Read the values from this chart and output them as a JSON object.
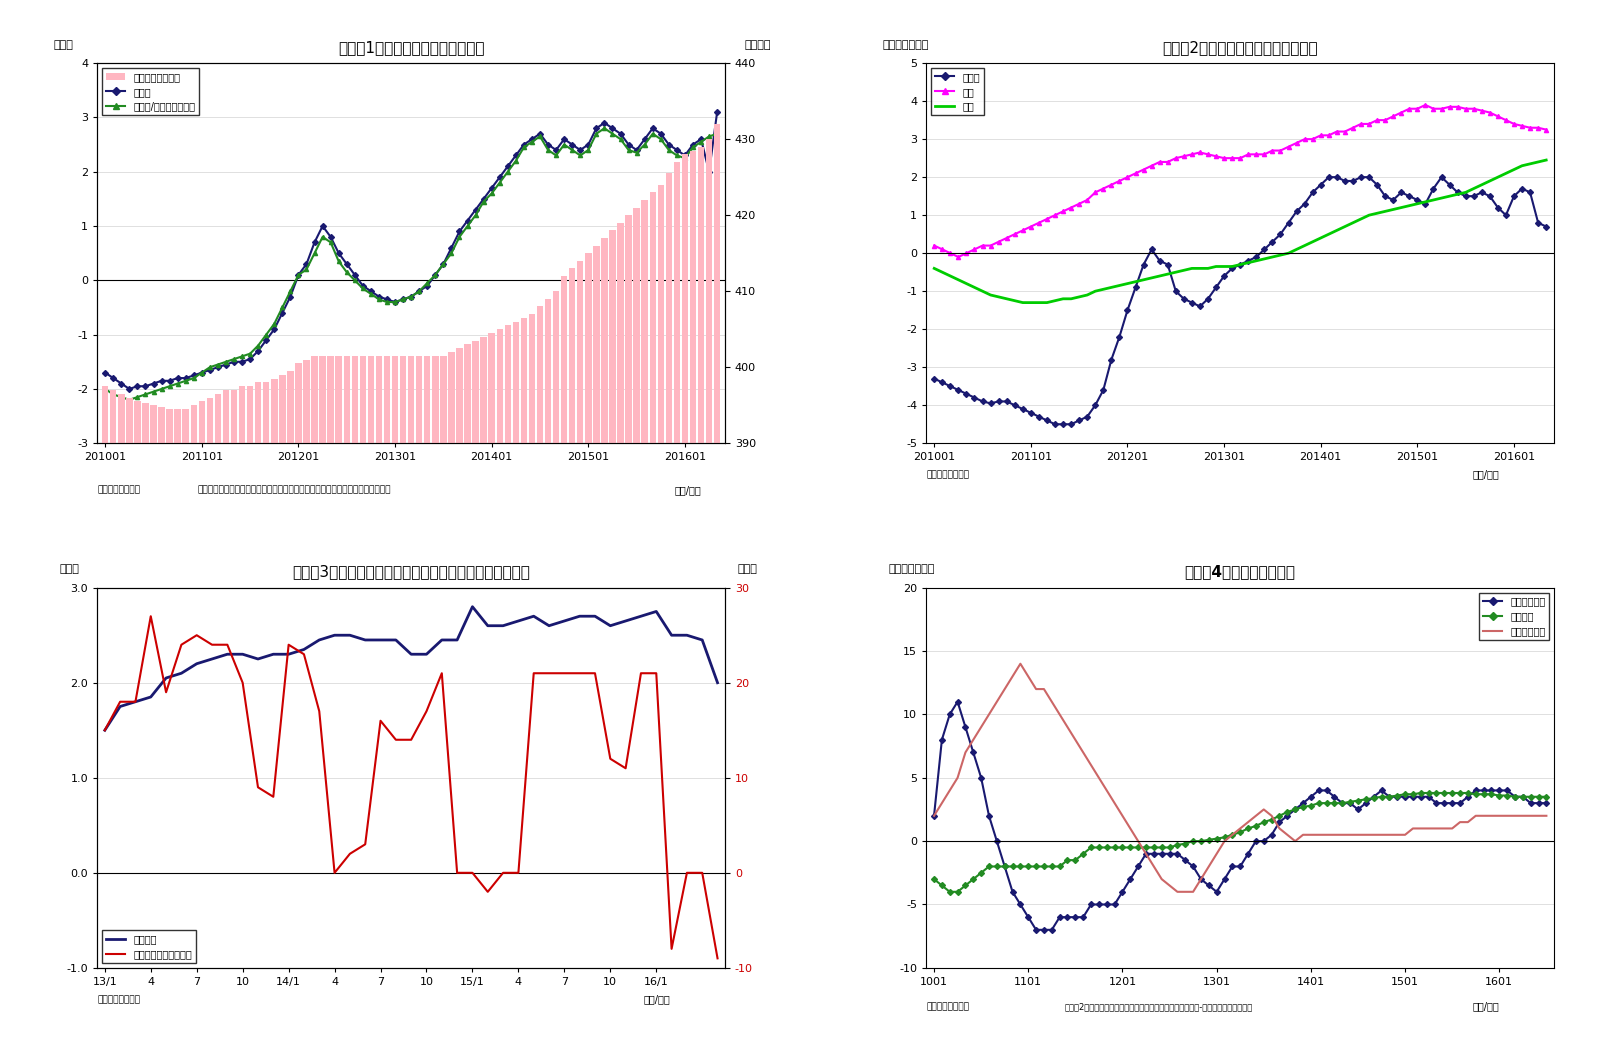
{
  "fig1": {
    "title": "（図表1）　銀行貸出残高の増減率",
    "ylabel_left": "（％）",
    "ylabel_right": "（兆円）",
    "xlabel": "（年/月）",
    "source": "（資料）日本銀行",
    "note": "（注）特殊要因調整後は、為替変動・債権償却・流動化等の影響を考慮したもの",
    "ylim_left": [
      -3,
      4
    ],
    "ylim_right": [
      390,
      440
    ],
    "yticks_left": [
      -3,
      -2,
      -1,
      0,
      1,
      2,
      3,
      4
    ],
    "yticks_right": [
      390,
      400,
      410,
      420,
      430,
      440
    ],
    "xticks": [
      "201001",
      "201101",
      "201201",
      "201301",
      "201401",
      "201501",
      "201601"
    ],
    "bar_color": "#FFB6C1",
    "line1_color": "#191970",
    "line2_color": "#228B22",
    "legend": [
      "貸出残高（右軸）",
      "前年比",
      "前年比/特殊要因調整後"
    ],
    "bar_y": [
      397.5,
      397.0,
      396.5,
      396.0,
      395.5,
      395.3,
      395.0,
      394.8,
      394.5,
      394.5,
      394.5,
      395.0,
      395.5,
      396.0,
      396.5,
      397.0,
      397.0,
      397.5,
      397.5,
      398.0,
      398.0,
      398.5,
      399.0,
      399.5,
      400.5,
      401.0,
      401.5,
      401.5,
      401.5,
      401.5,
      401.5,
      401.5,
      401.5,
      401.5,
      401.5,
      401.5,
      401.5,
      401.5,
      401.5,
      401.5,
      401.5,
      401.5,
      401.5,
      402.0,
      402.5,
      403.0,
      403.5,
      404.0,
      404.5,
      405.0,
      405.5,
      406.0,
      406.5,
      407.0,
      408.0,
      409.0,
      410.0,
      412.0,
      413.0,
      414.0,
      415.0,
      416.0,
      417.0,
      418.0,
      419.0,
      420.0,
      421.0,
      422.0,
      423.0,
      424.0,
      425.5,
      427.0,
      428.0,
      428.5,
      429.0,
      430.0,
      432.0
    ],
    "line1_y": [
      -1.7,
      -1.8,
      -1.9,
      -2.0,
      -1.95,
      -1.95,
      -1.9,
      -1.85,
      -1.85,
      -1.8,
      -1.8,
      -1.75,
      -1.7,
      -1.65,
      -1.6,
      -1.55,
      -1.5,
      -1.5,
      -1.45,
      -1.3,
      -1.1,
      -0.9,
      -0.6,
      -0.3,
      0.1,
      0.3,
      0.7,
      1.0,
      0.8,
      0.5,
      0.3,
      0.1,
      -0.1,
      -0.2,
      -0.3,
      -0.35,
      -0.4,
      -0.35,
      -0.3,
      -0.2,
      -0.1,
      0.1,
      0.3,
      0.6,
      0.9,
      1.1,
      1.3,
      1.5,
      1.7,
      1.9,
      2.1,
      2.3,
      2.5,
      2.6,
      2.7,
      2.5,
      2.4,
      2.6,
      2.5,
      2.4,
      2.5,
      2.8,
      2.9,
      2.8,
      2.7,
      2.5,
      2.4,
      2.6,
      2.8,
      2.7,
      2.5,
      2.4,
      2.3,
      2.5,
      2.6,
      2.0,
      3.1
    ],
    "line2_y": [
      -2.0,
      -2.1,
      -2.15,
      -2.2,
      -2.15,
      -2.1,
      -2.05,
      -2.0,
      -1.95,
      -1.9,
      -1.85,
      -1.8,
      -1.7,
      -1.6,
      -1.55,
      -1.5,
      -1.45,
      -1.4,
      -1.35,
      -1.2,
      -1.0,
      -0.8,
      -0.5,
      -0.2,
      0.1,
      0.2,
      0.5,
      0.8,
      0.7,
      0.35,
      0.15,
      0.0,
      -0.15,
      -0.25,
      -0.35,
      -0.4,
      -0.4,
      -0.35,
      -0.3,
      -0.2,
      -0.05,
      0.1,
      0.3,
      0.5,
      0.8,
      1.0,
      1.2,
      1.45,
      1.6,
      1.8,
      2.0,
      2.2,
      2.45,
      2.55,
      2.65,
      2.4,
      2.3,
      2.5,
      2.4,
      2.3,
      2.4,
      2.7,
      2.8,
      2.7,
      2.6,
      2.4,
      2.35,
      2.5,
      2.7,
      2.6,
      2.4,
      2.3,
      2.25,
      2.45,
      2.55,
      2.65,
      2.7
    ]
  },
  "fig2": {
    "title": "（図表2）　業態別の貸出残高増減率",
    "ylabel_left": "（前年比、％）",
    "xlabel": "（年/月）",
    "source": "（資料）日本銀行",
    "ylim": [
      -5,
      5
    ],
    "yticks": [
      -5,
      -4,
      -3,
      -2,
      -1,
      0,
      1,
      2,
      3,
      4,
      5
    ],
    "xticks": [
      "201001",
      "201101",
      "201201",
      "201301",
      "201401",
      "201501",
      "201601"
    ],
    "line1_color": "#191970",
    "line2_color": "#FF00FF",
    "line3_color": "#00CC00",
    "legend": [
      "都銀等",
      "地銀",
      "信金"
    ],
    "toshi_y": [
      -3.3,
      -3.4,
      -3.5,
      -3.6,
      -3.7,
      -3.8,
      -3.9,
      -3.95,
      -3.9,
      -3.9,
      -4.0,
      -4.1,
      -4.2,
      -4.3,
      -4.4,
      -4.5,
      -4.5,
      -4.5,
      -4.4,
      -4.3,
      -4.0,
      -3.6,
      -2.8,
      -2.2,
      -1.5,
      -0.9,
      -0.3,
      0.1,
      -0.2,
      -0.3,
      -1.0,
      -1.2,
      -1.3,
      -1.4,
      -1.2,
      -0.9,
      -0.6,
      -0.4,
      -0.3,
      -0.2,
      -0.1,
      0.1,
      0.3,
      0.5,
      0.8,
      1.1,
      1.3,
      1.6,
      1.8,
      2.0,
      2.0,
      1.9,
      1.9,
      2.0,
      2.0,
      1.8,
      1.5,
      1.4,
      1.6,
      1.5,
      1.4,
      1.3,
      1.7,
      2.0,
      1.8,
      1.6,
      1.5,
      1.5,
      1.6,
      1.5,
      1.2,
      1.0,
      1.5,
      1.7,
      1.6,
      0.8,
      0.7
    ],
    "chigi_y": [
      0.2,
      0.1,
      0.0,
      -0.1,
      0.0,
      0.1,
      0.2,
      0.2,
      0.3,
      0.4,
      0.5,
      0.6,
      0.7,
      0.8,
      0.9,
      1.0,
      1.1,
      1.2,
      1.3,
      1.4,
      1.6,
      1.7,
      1.8,
      1.9,
      2.0,
      2.1,
      2.2,
      2.3,
      2.4,
      2.4,
      2.5,
      2.55,
      2.6,
      2.65,
      2.6,
      2.55,
      2.5,
      2.5,
      2.5,
      2.6,
      2.6,
      2.6,
      2.7,
      2.7,
      2.8,
      2.9,
      3.0,
      3.0,
      3.1,
      3.1,
      3.2,
      3.2,
      3.3,
      3.4,
      3.4,
      3.5,
      3.5,
      3.6,
      3.7,
      3.8,
      3.8,
      3.9,
      3.8,
      3.8,
      3.85,
      3.85,
      3.8,
      3.8,
      3.75,
      3.7,
      3.6,
      3.5,
      3.4,
      3.35,
      3.3,
      3.3,
      3.25
    ],
    "shinkin_y": [
      -0.4,
      -0.5,
      -0.6,
      -0.7,
      -0.8,
      -0.9,
      -1.0,
      -1.1,
      -1.15,
      -1.2,
      -1.25,
      -1.3,
      -1.3,
      -1.3,
      -1.3,
      -1.25,
      -1.2,
      -1.2,
      -1.15,
      -1.1,
      -1.0,
      -0.95,
      -0.9,
      -0.85,
      -0.8,
      -0.75,
      -0.7,
      -0.65,
      -0.6,
      -0.55,
      -0.5,
      -0.45,
      -0.4,
      -0.4,
      -0.4,
      -0.35,
      -0.35,
      -0.35,
      -0.3,
      -0.25,
      -0.2,
      -0.15,
      -0.1,
      -0.05,
      0.0,
      0.1,
      0.2,
      0.3,
      0.4,
      0.5,
      0.6,
      0.7,
      0.8,
      0.9,
      1.0,
      1.05,
      1.1,
      1.15,
      1.2,
      1.25,
      1.3,
      1.35,
      1.4,
      1.45,
      1.5,
      1.55,
      1.6,
      1.7,
      1.8,
      1.9,
      2.0,
      2.1,
      2.2,
      2.3,
      2.35,
      2.4,
      2.45
    ]
  },
  "fig3": {
    "title": "（図表3）銀行貸出とドル円レート（月次平均の前年比）",
    "ylabel_left": "（％）",
    "ylabel_right": "（％）",
    "xlabel": "（年/月）",
    "source": "（資料）日本銀行",
    "ylim_left": [
      -1.0,
      3.0
    ],
    "ylim_right": [
      -10,
      30
    ],
    "yticks_left": [
      -1.0,
      0.0,
      1.0,
      2.0,
      3.0
    ],
    "yticks_right": [
      -10,
      0,
      10,
      20,
      30
    ],
    "xticks_labels": [
      "13/1",
      "4",
      "7",
      "10",
      "14/1",
      "4",
      "7",
      "10",
      "15/1",
      "4",
      "7",
      "10",
      "16/1"
    ],
    "xticks_pos": [
      0,
      3,
      6,
      9,
      12,
      15,
      18,
      21,
      24,
      27,
      30,
      33,
      36
    ],
    "line1_color": "#191970",
    "line2_color": "#CC0000",
    "legend": [
      "銀行貸出",
      "ドル円レート（右軸）"
    ],
    "bank_loan": [
      1.5,
      1.75,
      1.8,
      1.85,
      2.05,
      2.1,
      2.2,
      2.25,
      2.3,
      2.3,
      2.25,
      2.3,
      2.3,
      2.35,
      2.45,
      2.5,
      2.5,
      2.45,
      2.45,
      2.45,
      2.3,
      2.3,
      2.45,
      2.45,
      2.8,
      2.6,
      2.6,
      2.65,
      2.7,
      2.6,
      2.65,
      2.7,
      2.7,
      2.6,
      2.65,
      2.7,
      2.75,
      2.5,
      2.5,
      2.45,
      2.0
    ],
    "usd_jpy": [
      15,
      18,
      18,
      27,
      19,
      24,
      25,
      24,
      24,
      20,
      9,
      8,
      24,
      23,
      17,
      0,
      2,
      3,
      16,
      14,
      14,
      17,
      21,
      0,
      0,
      -2,
      0,
      0,
      21,
      21,
      21,
      21,
      21,
      12,
      11,
      21,
      21,
      -8,
      0,
      0,
      -9
    ]
  },
  "fig4": {
    "title": "（図表4）貸出先別貸出金",
    "ylabel_left": "（前年比、％）",
    "xlabel": "（年/月）",
    "source": "（資料）日本銀行",
    "note": "（注）2月分まで（末残ベース）、大・中堅企業は「法人」-「中小企業」にて算出",
    "ylim": [
      -10,
      20
    ],
    "yticks": [
      -10,
      -5,
      0,
      5,
      10,
      15,
      20
    ],
    "xticks_labels": [
      "1001",
      "1101",
      "1201",
      "1301",
      "1401",
      "1501",
      "1601"
    ],
    "line1_color": "#191970",
    "line2_color": "#228B22",
    "line3_color": "#CC6666",
    "legend": [
      "大・中堅企業",
      "中小企業",
      "地方公共団体"
    ],
    "daiki_y": [
      2,
      8,
      10,
      11,
      9,
      7,
      5,
      2,
      0,
      -2,
      -4,
      -5,
      -6,
      -7,
      -7,
      -7,
      -6,
      -6,
      -6,
      -6,
      -5,
      -5,
      -5,
      -5,
      -4,
      -3,
      -2,
      -1,
      -1,
      -1,
      -1,
      -1,
      -1.5,
      -2,
      -3,
      -3.5,
      -4,
      -3,
      -2,
      -2,
      -1,
      0,
      0,
      0.5,
      1.5,
      2,
      2.5,
      3,
      3.5,
      4,
      4,
      3.5,
      3,
      3,
      2.5,
      3,
      3.5,
      4,
      3.5,
      3.5,
      3.5,
      3.5,
      3.5,
      3.5,
      3,
      3,
      3,
      3,
      3.5,
      4,
      4,
      4,
      4,
      4,
      3.5,
      3.5,
      3,
      3,
      3
    ],
    "chusho_y": [
      -3,
      -3.5,
      -4,
      -4,
      -3.5,
      -3,
      -2.5,
      -2,
      -2,
      -2,
      -2,
      -2,
      -2,
      -2,
      -2,
      -2,
      -2,
      -1.5,
      -1.5,
      -1,
      -0.5,
      -0.5,
      -0.5,
      -0.5,
      -0.5,
      -0.5,
      -0.5,
      -0.5,
      -0.5,
      -0.5,
      -0.5,
      -0.3,
      -0.2,
      0,
      0,
      0.1,
      0.2,
      0.3,
      0.5,
      0.7,
      1.0,
      1.2,
      1.5,
      1.7,
      2.0,
      2.3,
      2.5,
      2.7,
      2.8,
      3.0,
      3.0,
      3.0,
      3.0,
      3.1,
      3.2,
      3.3,
      3.4,
      3.5,
      3.5,
      3.6,
      3.7,
      3.7,
      3.8,
      3.8,
      3.8,
      3.8,
      3.8,
      3.8,
      3.8,
      3.7,
      3.7,
      3.7,
      3.6,
      3.6,
      3.5,
      3.5,
      3.5,
      3.5,
      3.5
    ],
    "chiho_y": [
      2,
      3,
      4,
      5,
      7,
      8,
      9,
      10,
      11,
      12,
      13,
      14,
      13,
      12,
      12,
      11,
      10,
      9,
      8,
      7,
      6,
      5,
      4,
      3,
      2,
      1,
      0,
      -1,
      -2,
      -3,
      -3.5,
      -4,
      -4,
      -4,
      -3,
      -2,
      -1,
      0,
      0.5,
      1,
      1.5,
      2,
      2.5,
      2,
      1,
      0.5,
      0,
      0.5,
      0.5,
      0.5,
      0.5,
      0.5,
      0.5,
      0.5,
      0.5,
      0.5,
      0.5,
      0.5,
      0.5,
      0.5,
      0.5,
      1,
      1,
      1,
      1,
      1,
      1,
      1.5,
      1.5,
      2,
      2,
      2,
      2,
      2,
      2,
      2,
      2,
      2,
      2
    ]
  }
}
